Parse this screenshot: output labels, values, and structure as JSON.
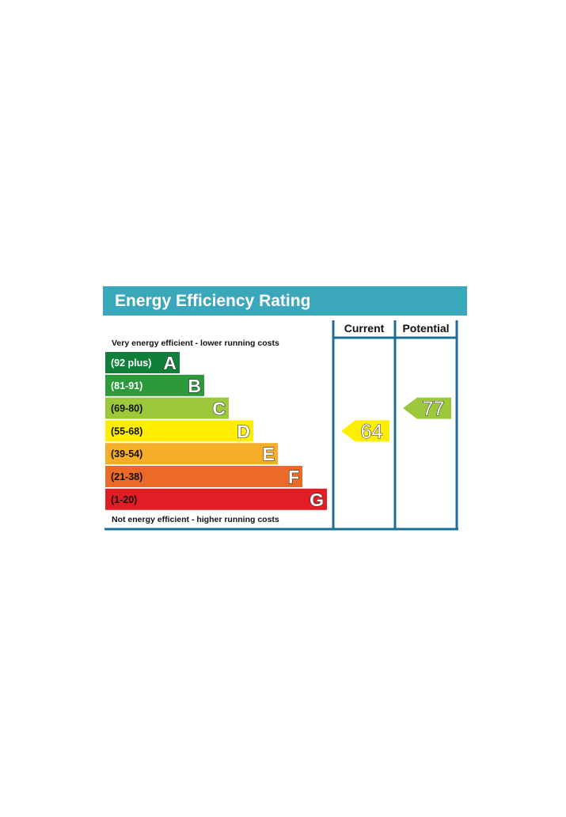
{
  "chart_data": {
    "type": "bar",
    "title": "Energy Efficiency Rating",
    "top_note": "Very energy efficient - lower running costs",
    "bottom_note": "Not energy efficient - higher running costs",
    "columns": [
      "Current",
      "Potential"
    ],
    "bands": [
      {
        "letter": "A",
        "range": "(92 plus)",
        "min": 92,
        "max": 100,
        "color": "#0f7f3b",
        "text_color": "#ffffff"
      },
      {
        "letter": "B",
        "range": "(81-91)",
        "min": 81,
        "max": 91,
        "color": "#2c9a3b",
        "text_color": "#ffffff"
      },
      {
        "letter": "C",
        "range": "(69-80)",
        "min": 69,
        "max": 80,
        "color": "#9cc83c",
        "text_color": "#111111"
      },
      {
        "letter": "D",
        "range": "(55-68)",
        "min": 55,
        "max": 68,
        "color": "#ffee00",
        "text_color": "#111111"
      },
      {
        "letter": "E",
        "range": "(39-54)",
        "min": 39,
        "max": 54,
        "color": "#f6ae2a",
        "text_color": "#111111"
      },
      {
        "letter": "F",
        "range": "(21-38)",
        "min": 21,
        "max": 38,
        "color": "#ec6a28",
        "text_color": "#111111"
      },
      {
        "letter": "G",
        "range": "(1-20)",
        "min": 1,
        "max": 20,
        "color": "#e31d25",
        "text_color": "#111111"
      }
    ],
    "current": {
      "value": 64,
      "band": "D",
      "color": "#ffee00"
    },
    "potential": {
      "value": 77,
      "band": "C",
      "color": "#9cc83c"
    }
  },
  "colors": {
    "header": "#3aa7bb",
    "frame": "#1a7094",
    "title_text": "#ffffff"
  }
}
